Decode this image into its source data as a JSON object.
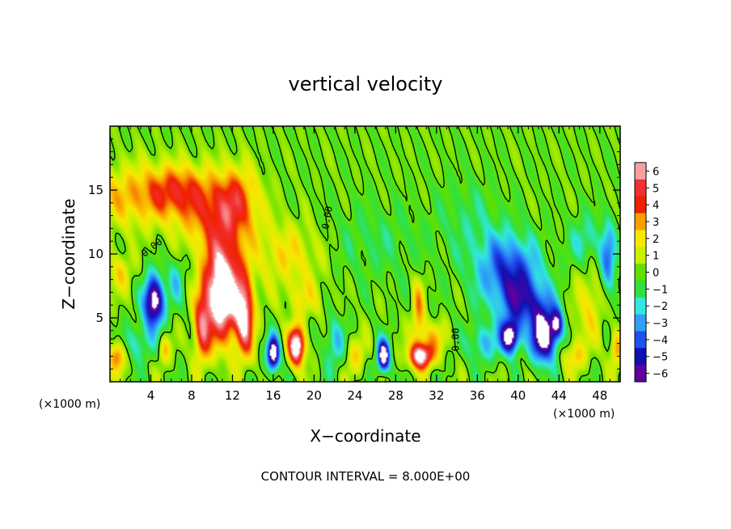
{
  "chart_data": {
    "type": "heatmap",
    "title": "vertical velocity",
    "xlabel": "X−coordinate",
    "ylabel": "Z−coordinate",
    "x_unit_label_left": "(×1000 m)",
    "x_unit_label_right": "(×1000 m)",
    "footer": "CONTOUR INTERVAL = 8.000E+00",
    "xlim": [
      0,
      50
    ],
    "ylim": [
      0,
      20
    ],
    "x_ticks": [
      4,
      8,
      12,
      16,
      20,
      24,
      28,
      32,
      36,
      40,
      44,
      48
    ],
    "x_tick_labels": [
      "4",
      "8",
      "12",
      "16",
      "20",
      "24",
      "28",
      "32",
      "36",
      "40",
      "44",
      "48"
    ],
    "y_ticks": [
      5,
      10,
      15
    ],
    "y_tick_labels": [
      "5",
      "10",
      "15"
    ],
    "colorbar": {
      "min": -6,
      "max": 6,
      "levels": [
        6,
        5,
        4,
        3,
        2,
        1,
        0,
        -1,
        -2,
        -3,
        -4,
        -5,
        -6
      ],
      "level_labels": [
        "6",
        "5",
        "4",
        "3",
        "2",
        "1",
        "0",
        "−1",
        "−2",
        "−3",
        "−4",
        "−5",
        "−6"
      ],
      "colors": [
        "#f8a0a0",
        "#f03030",
        "#f02000",
        "#f8a000",
        "#f8e800",
        "#c8f000",
        "#60e000",
        "#30e040",
        "#30e8e0",
        "#30a0f8",
        "#2050f0",
        "#1010b0",
        "#6000a0"
      ]
    },
    "contour_labels": [
      {
        "text": "0.00",
        "x": 4.3,
        "z": 10.3,
        "angle": -38
      },
      {
        "text": "0.00",
        "x": 21.6,
        "z": 12.8,
        "angle": -80
      },
      {
        "text": "0.00",
        "x": 34.2,
        "z": 3.3,
        "angle": -90
      }
    ],
    "features": [
      {
        "x": 2.0,
        "z": 14.5,
        "sx": 4.5,
        "sz": 2.5,
        "v": 2.5
      },
      {
        "x": 6.5,
        "z": 15.0,
        "sx": 3.0,
        "sz": 2.0,
        "v": 3.0
      },
      {
        "x": 10.5,
        "z": 13.0,
        "sx": 3.5,
        "sz": 3.0,
        "v": 3.5
      },
      {
        "x": 12.5,
        "z": 14.5,
        "sx": 2.0,
        "sz": 2.5,
        "v": 2.5
      },
      {
        "x": 11.0,
        "z": 7.0,
        "sx": 1.8,
        "sz": 3.6,
        "v": 9.0
      },
      {
        "x": 13.2,
        "z": 5.0,
        "sx": 0.9,
        "sz": 3.0,
        "v": 6.0
      },
      {
        "x": 9.0,
        "z": 4.0,
        "sx": 0.8,
        "sz": 2.5,
        "v": 4.5
      },
      {
        "x": 4.3,
        "z": 6.3,
        "sx": 1.0,
        "sz": 2.0,
        "v": -7.5
      },
      {
        "x": 6.5,
        "z": 8.0,
        "sx": 0.8,
        "sz": 2.0,
        "v": -2.0
      },
      {
        "x": 1.0,
        "z": 8.5,
        "sx": 1.2,
        "sz": 1.5,
        "v": 2.0
      },
      {
        "x": 0.7,
        "z": 2.0,
        "sx": 0.8,
        "sz": 1.2,
        "v": 4.0
      },
      {
        "x": 2.7,
        "z": 3.0,
        "sx": 1.5,
        "sz": 1.5,
        "v": -2.0
      },
      {
        "x": 5.3,
        "z": 2.5,
        "sx": 0.6,
        "sz": 1.2,
        "v": 2.5
      },
      {
        "x": 16.0,
        "z": 2.2,
        "sx": 0.6,
        "sz": 1.3,
        "v": -8.0
      },
      {
        "x": 18.3,
        "z": 2.8,
        "sx": 0.8,
        "sz": 1.5,
        "v": 8.0
      },
      {
        "x": 17.5,
        "z": 10.0,
        "sx": 3.5,
        "sz": 2.5,
        "v": 2.0
      },
      {
        "x": 19.0,
        "z": 6.5,
        "sx": 2.0,
        "sz": 1.5,
        "v": 1.5
      },
      {
        "x": 22.0,
        "z": 3.0,
        "sx": 1.0,
        "sz": 2.0,
        "v": -2.5
      },
      {
        "x": 24.0,
        "z": 2.0,
        "sx": 1.0,
        "sz": 1.5,
        "v": 2.0
      },
      {
        "x": 26.8,
        "z": 2.0,
        "sx": 0.6,
        "sz": 1.2,
        "v": -8.0
      },
      {
        "x": 30.5,
        "z": 2.0,
        "sx": 1.2,
        "sz": 1.0,
        "v": 7.0
      },
      {
        "x": 30.2,
        "z": 5.5,
        "sx": 0.6,
        "sz": 2.5,
        "v": 3.0
      },
      {
        "x": 31.5,
        "z": 3.5,
        "sx": 1.5,
        "sz": 1.2,
        "v": 2.0
      },
      {
        "x": 26.0,
        "z": 11.0,
        "sx": 5.0,
        "sz": 3.0,
        "v": -1.0
      },
      {
        "x": 35.0,
        "z": 13.0,
        "sx": 3.0,
        "sz": 3.0,
        "v": -1.0
      },
      {
        "x": 38.0,
        "z": 9.0,
        "sx": 3.0,
        "sz": 3.0,
        "v": -2.5
      },
      {
        "x": 40.0,
        "z": 8.0,
        "sx": 2.5,
        "sz": 3.0,
        "v": -3.0
      },
      {
        "x": 39.2,
        "z": 3.5,
        "sx": 0.9,
        "sz": 1.3,
        "v": -7.5
      },
      {
        "x": 42.5,
        "z": 3.5,
        "sx": 1.2,
        "sz": 2.0,
        "v": -7.5
      },
      {
        "x": 43.8,
        "z": 4.5,
        "sx": 0.6,
        "sz": 1.2,
        "v": -5.0
      },
      {
        "x": 41.0,
        "z": 6.0,
        "sx": 2.5,
        "sz": 1.8,
        "v": -3.0
      },
      {
        "x": 36.5,
        "z": 3.0,
        "sx": 1.5,
        "sz": 1.5,
        "v": -2.5
      },
      {
        "x": 47.0,
        "z": 6.0,
        "sx": 1.5,
        "sz": 3.0,
        "v": 2.0
      },
      {
        "x": 48.8,
        "z": 9.5,
        "sx": 0.8,
        "sz": 3.0,
        "v": -3.5
      },
      {
        "x": 49.6,
        "z": 2.5,
        "sx": 0.6,
        "sz": 1.5,
        "v": 3.0
      },
      {
        "x": 45.5,
        "z": 2.0,
        "sx": 1.0,
        "sz": 1.2,
        "v": 2.5
      },
      {
        "x": 46.5,
        "z": 11.0,
        "sx": 1.5,
        "sz": 2.0,
        "v": -2.0
      }
    ]
  }
}
